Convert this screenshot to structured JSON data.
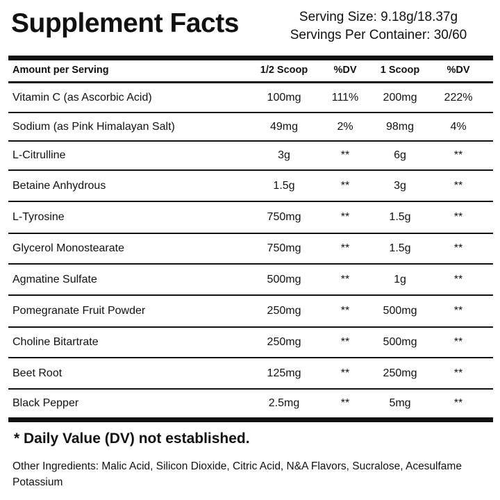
{
  "header": {
    "title": "Supplement Facts",
    "serving_size": "Serving Size: 9.18g/18.37g",
    "servings_per_container": "Servings Per Container: 30/60"
  },
  "table": {
    "header": [
      "Amount per Serving",
      "1/2 Scoop",
      "%DV",
      "1 Scoop",
      "%DV"
    ],
    "rows": [
      [
        "Vitamin C (as Ascorbic Acid)",
        "100mg",
        "111%",
        "200mg",
        "222%"
      ],
      [
        "Sodium (as Pink Himalayan Salt)",
        "49mg",
        "2%",
        "98mg",
        "4%"
      ],
      [
        "L-Citrulline",
        "3g",
        "**",
        "6g",
        "**"
      ],
      [
        "Betaine Anhydrous",
        "1.5g",
        "**",
        "3g",
        "**"
      ],
      [
        "L-Tyrosine",
        "750mg",
        "**",
        "1.5g",
        "**"
      ],
      [
        "Glycerol Monostearate",
        "750mg",
        "**",
        "1.5g",
        "**"
      ],
      [
        "Agmatine Sulfate",
        "500mg",
        "**",
        "1g",
        "**"
      ],
      [
        "Pomegranate Fruit Powder",
        "250mg",
        "**",
        "500mg",
        "**"
      ],
      [
        "Choline Bitartrate",
        "250mg",
        "**",
        "500mg",
        "**"
      ],
      [
        "Beet Root",
        "125mg",
        "**",
        "250mg",
        "**"
      ],
      [
        "Black Pepper",
        "2.5mg",
        "**",
        "5mg",
        "**"
      ]
    ]
  },
  "footnote": "* Daily Value (DV) not established.",
  "other_ingredients": "Other Ingredients: Malic Acid, Silicon Dioxide, Citric Acid, N&A Flavors, Sucralose, Acesulfame Potassium"
}
